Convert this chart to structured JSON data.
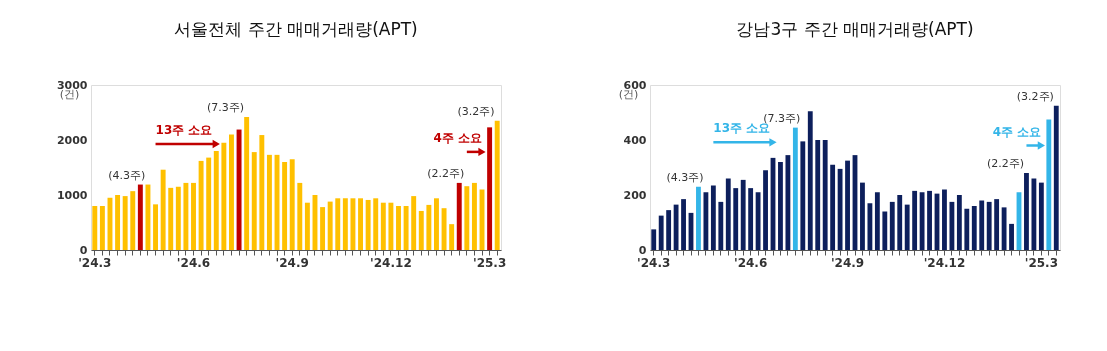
{
  "chart_data": [
    {
      "type": "bar",
      "title": "서울전체 주간 매매거래량(APT)",
      "ylabel": "(건)",
      "categories": [
        "'24.3",
        null,
        null,
        null,
        null,
        null,
        null,
        null,
        null,
        null,
        null,
        null,
        null,
        "'24.6",
        null,
        null,
        null,
        null,
        null,
        null,
        null,
        null,
        null,
        null,
        null,
        null,
        "'24.9",
        null,
        null,
        null,
        null,
        null,
        null,
        null,
        null,
        null,
        null,
        null,
        null,
        "'24.12",
        null,
        null,
        null,
        null,
        null,
        null,
        null,
        null,
        null,
        null,
        null,
        null,
        "'25.3",
        null
      ],
      "values": [
        800,
        800,
        950,
        1000,
        980,
        1070,
        1190,
        1190,
        830,
        1460,
        1130,
        1150,
        1220,
        1220,
        1620,
        1680,
        1800,
        1950,
        2100,
        2190,
        2420,
        1780,
        2090,
        1730,
        1730,
        1600,
        1650,
        1220,
        860,
        1000,
        780,
        880,
        940,
        940,
        940,
        940,
        910,
        940,
        860,
        860,
        800,
        800,
        980,
        710,
        820,
        940,
        760,
        470,
        1220,
        1160,
        1220,
        1100,
        2230,
        2350
      ],
      "colors": [
        "#ffc000",
        "#ffc000",
        "#ffc000",
        "#ffc000",
        "#ffc000",
        "#ffc000",
        "#c00000",
        "#ffc000",
        "#ffc000",
        "#ffc000",
        "#ffc000",
        "#ffc000",
        "#ffc000",
        "#ffc000",
        "#ffc000",
        "#ffc000",
        "#ffc000",
        "#ffc000",
        "#ffc000",
        "#c00000",
        "#ffc000",
        "#ffc000",
        "#ffc000",
        "#ffc000",
        "#ffc000",
        "#ffc000",
        "#ffc000",
        "#ffc000",
        "#ffc000",
        "#ffc000",
        "#ffc000",
        "#ffc000",
        "#ffc000",
        "#ffc000",
        "#ffc000",
        "#ffc000",
        "#ffc000",
        "#ffc000",
        "#ffc000",
        "#ffc000",
        "#ffc000",
        "#ffc000",
        "#ffc000",
        "#ffc000",
        "#ffc000",
        "#ffc000",
        "#ffc000",
        "#ffc000",
        "#c00000",
        "#ffc000",
        "#ffc000",
        "#ffc000",
        "#c00000",
        "#ffc000"
      ],
      "ylim": [
        0,
        3000
      ],
      "yticks": [
        0,
        1000,
        2000,
        3000
      ],
      "grid": false,
      "annotations": [
        "(4.3주)",
        "(7.3주)",
        "(2.2주)",
        "(3.2주)",
        "13주 소요",
        "4주 소요"
      ]
    },
    {
      "type": "bar",
      "title": "강남3구 주간 매매거래량(APT)",
      "ylabel": "(건)",
      "categories": [
        "'24.3",
        null,
        null,
        null,
        null,
        null,
        null,
        null,
        null,
        null,
        null,
        null,
        null,
        "'24.6",
        null,
        null,
        null,
        null,
        null,
        null,
        null,
        null,
        null,
        null,
        null,
        null,
        "'24.9",
        null,
        null,
        null,
        null,
        null,
        null,
        null,
        null,
        null,
        null,
        null,
        null,
        "'24.12",
        null,
        null,
        null,
        null,
        null,
        null,
        null,
        null,
        null,
        null,
        null,
        null,
        "'25.3",
        null,
        null
      ],
      "values": [
        75,
        125,
        145,
        165,
        185,
        135,
        230,
        210,
        235,
        175,
        260,
        225,
        255,
        225,
        210,
        290,
        335,
        320,
        345,
        445,
        395,
        505,
        400,
        400,
        310,
        295,
        325,
        345,
        245,
        170,
        210,
        140,
        175,
        200,
        165,
        215,
        210,
        215,
        205,
        220,
        175,
        200,
        150,
        160,
        180,
        175,
        185,
        155,
        95,
        210,
        280,
        260,
        245,
        475,
        525
      ],
      "colors": [
        "#0d1f5c",
        "#0d1f5c",
        "#0d1f5c",
        "#0d1f5c",
        "#0d1f5c",
        "#0d1f5c",
        "#33b5e8",
        "#0d1f5c",
        "#0d1f5c",
        "#0d1f5c",
        "#0d1f5c",
        "#0d1f5c",
        "#0d1f5c",
        "#0d1f5c",
        "#0d1f5c",
        "#0d1f5c",
        "#0d1f5c",
        "#0d1f5c",
        "#0d1f5c",
        "#33b5e8",
        "#0d1f5c",
        "#0d1f5c",
        "#0d1f5c",
        "#0d1f5c",
        "#0d1f5c",
        "#0d1f5c",
        "#0d1f5c",
        "#0d1f5c",
        "#0d1f5c",
        "#0d1f5c",
        "#0d1f5c",
        "#0d1f5c",
        "#0d1f5c",
        "#0d1f5c",
        "#0d1f5c",
        "#0d1f5c",
        "#0d1f5c",
        "#0d1f5c",
        "#0d1f5c",
        "#0d1f5c",
        "#0d1f5c",
        "#0d1f5c",
        "#0d1f5c",
        "#0d1f5c",
        "#0d1f5c",
        "#0d1f5c",
        "#0d1f5c",
        "#0d1f5c",
        "#0d1f5c",
        "#33b5e8",
        "#0d1f5c",
        "#0d1f5c",
        "#0d1f5c",
        "#33b5e8",
        "#0d1f5c"
      ],
      "ylim": [
        0,
        600
      ],
      "yticks": [
        0,
        200,
        400,
        600
      ],
      "grid": false,
      "annotations": [
        "(4.3주)",
        "(7.3주)",
        "(2.2주)",
        "(3.2주)",
        "13주 소요",
        "4주 소요"
      ]
    }
  ]
}
